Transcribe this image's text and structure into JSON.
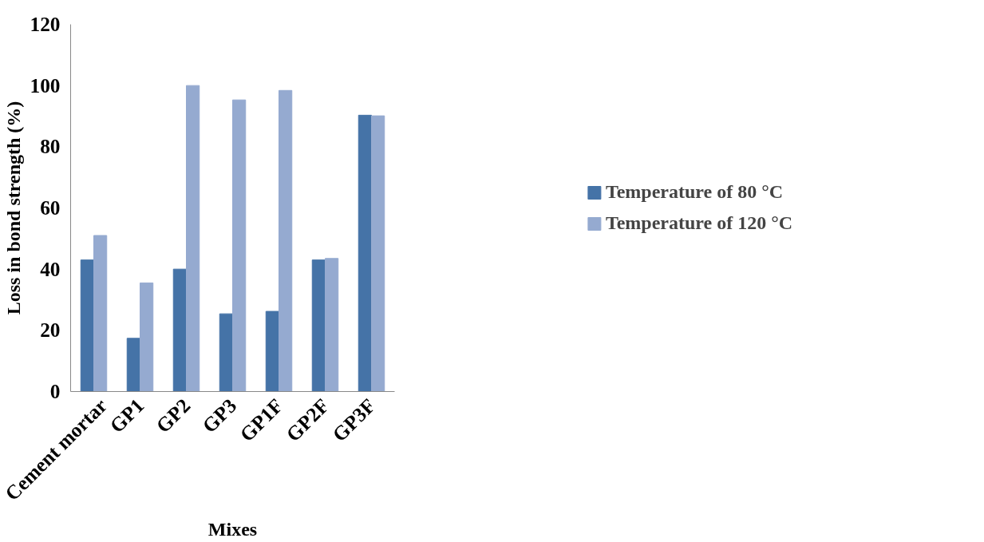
{
  "chart_data": {
    "type": "bar",
    "xlabel": "Mixes",
    "ylabel": "Loss in bond strength (%)",
    "categories": [
      "Cement mortar",
      "GP1",
      "GP2",
      "GP3",
      "GP1F",
      "GP2F",
      "GP3F"
    ],
    "series": [
      {
        "name": "Temperature of 80 °C",
        "color": "#4573a7",
        "values": [
          43.0,
          17.4,
          40.0,
          25.4,
          26.2,
          43.0,
          90.3
        ]
      },
      {
        "name": "Temperature of 120 °C",
        "color": "#95aad0",
        "values": [
          51.0,
          35.5,
          100.0,
          95.3,
          98.4,
          43.5,
          90.1
        ]
      }
    ],
    "ylim": [
      0,
      120
    ],
    "yticks": [
      0,
      20,
      40,
      60,
      80,
      100,
      120
    ],
    "grid": false,
    "legend": "right"
  }
}
